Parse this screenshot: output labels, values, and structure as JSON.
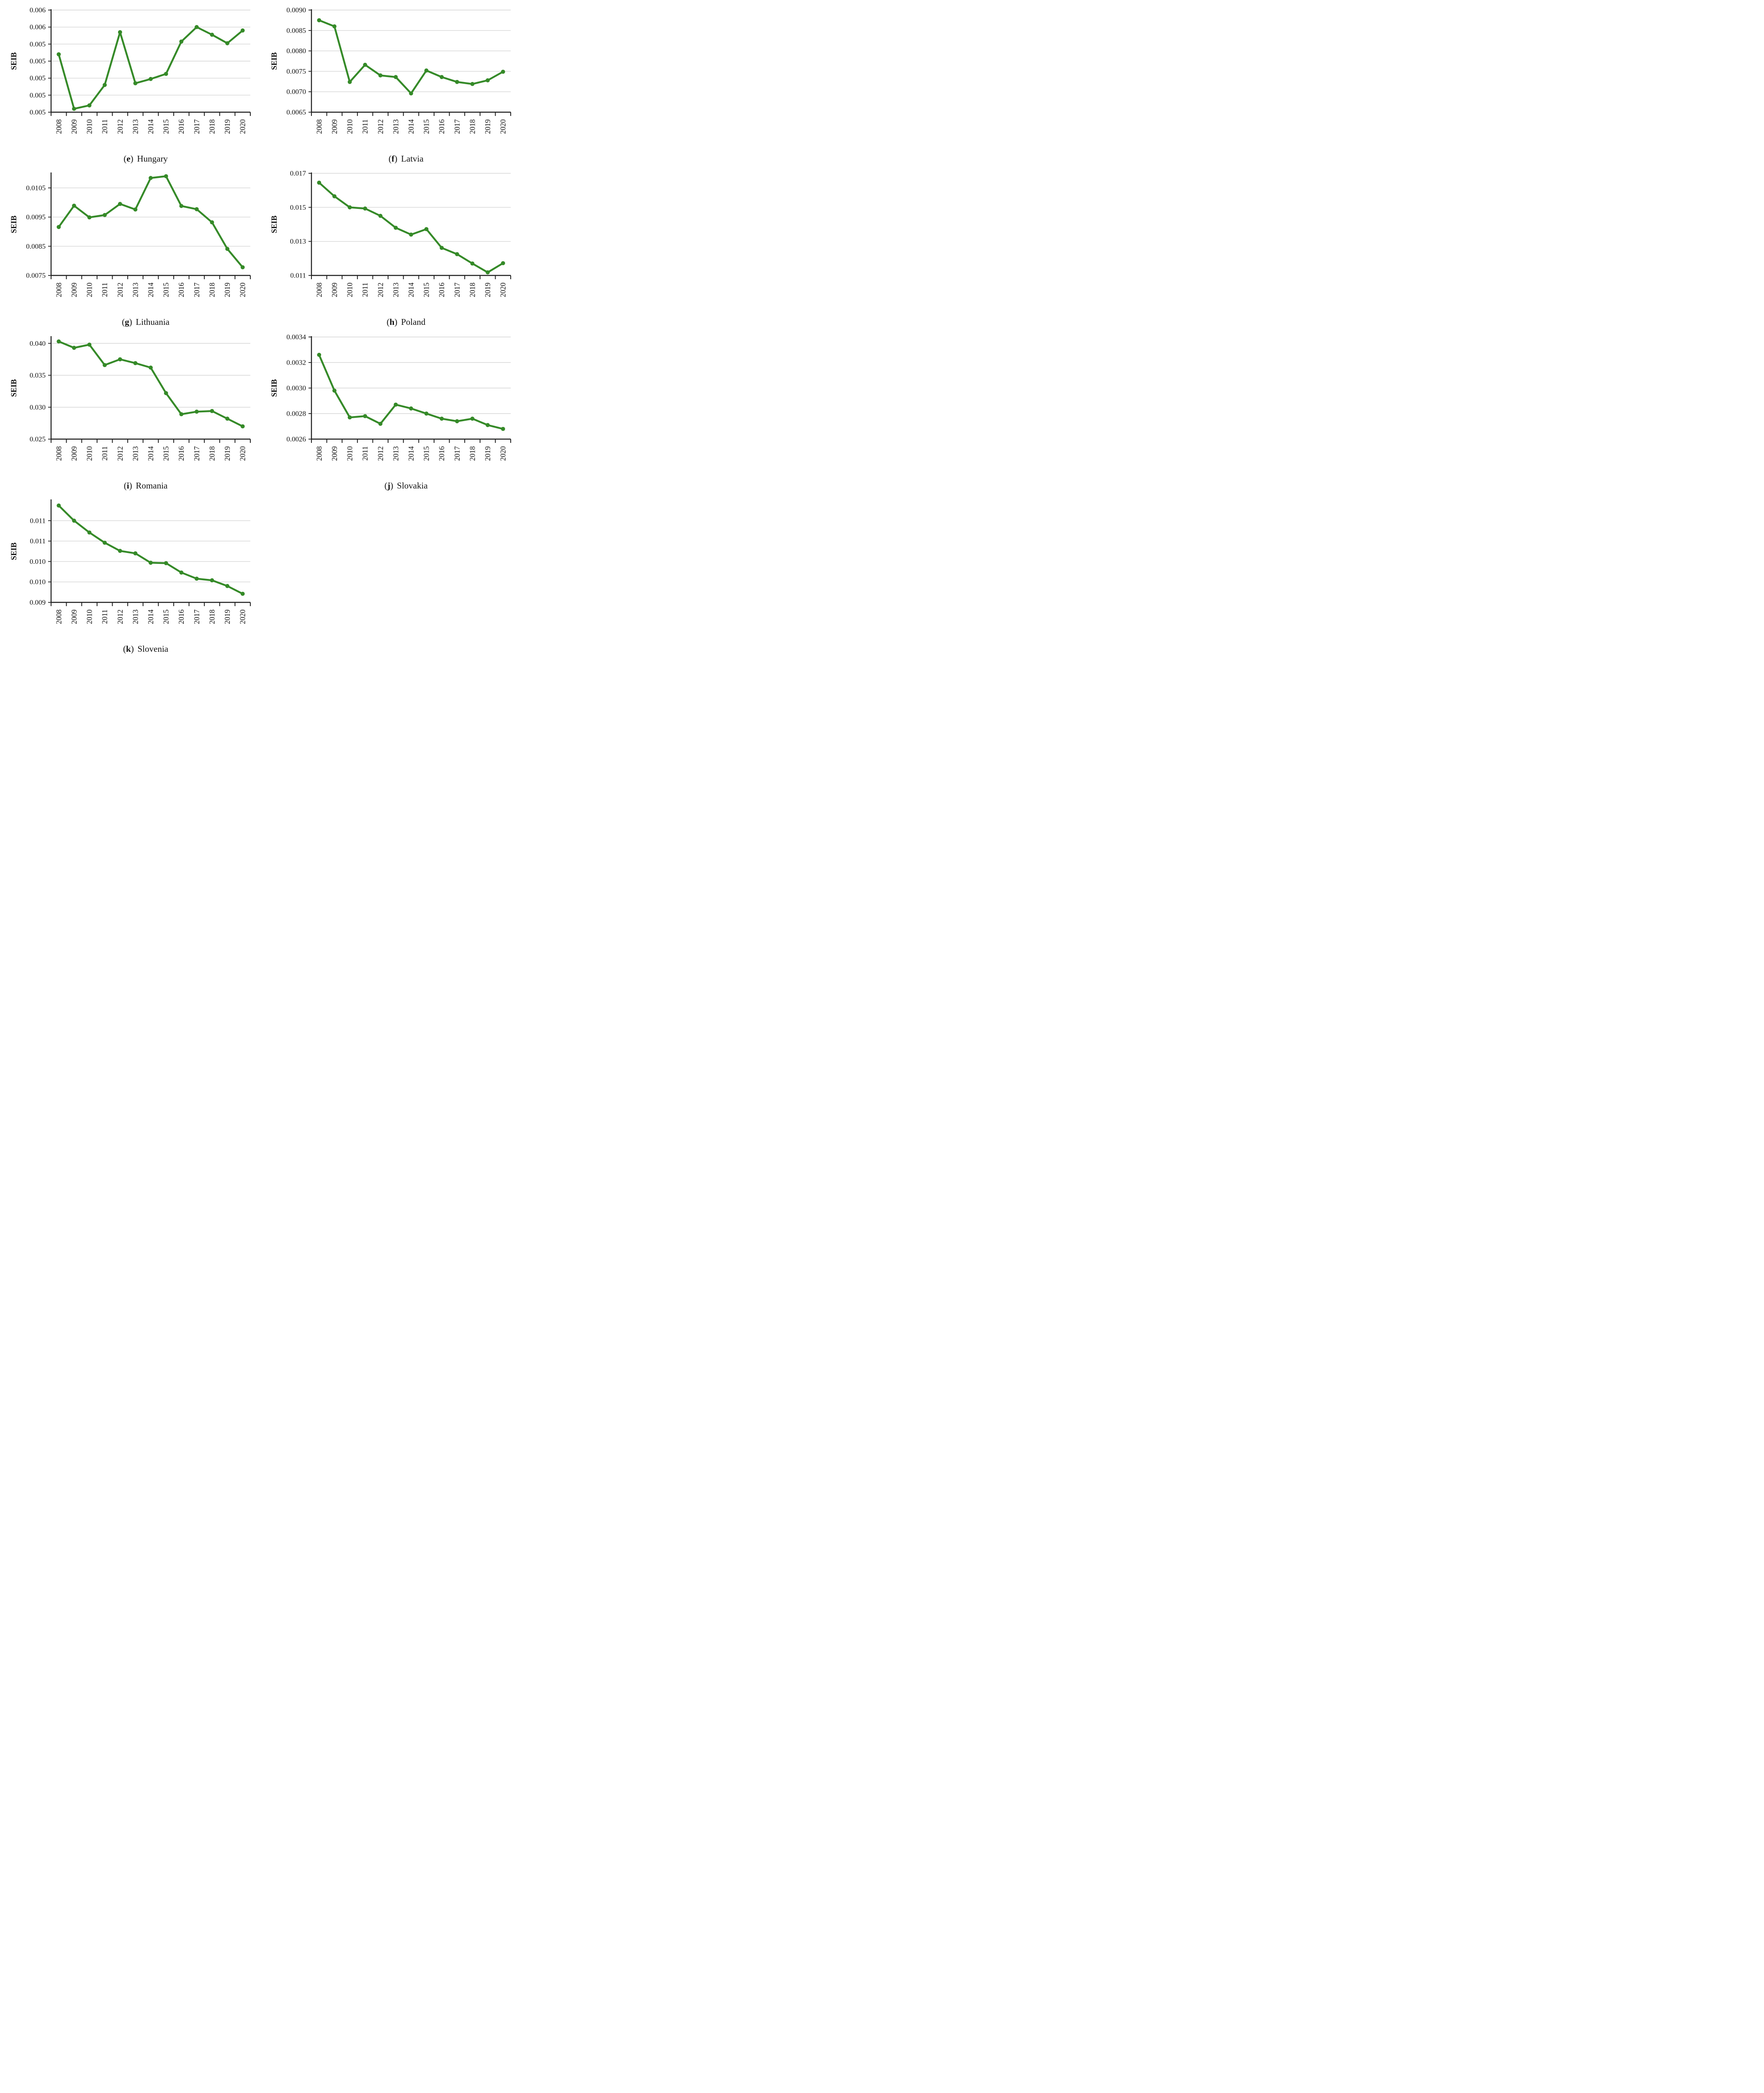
{
  "figure": {
    "caption_open": "(",
    "caption_close": ")",
    "ylabel": "SEIB"
  },
  "styles": {
    "line_color": "#358a28",
    "grid_color": "#d6d6d6",
    "axis_color": "#1f1f1f",
    "text_color": "#111111",
    "background": "#ffffff"
  },
  "years": [
    2008,
    2009,
    2010,
    2011,
    2012,
    2013,
    2014,
    2015,
    2016,
    2017,
    2018,
    2019,
    2020
  ],
  "chart_data": [
    {
      "type": "line",
      "panel_letter": "e",
      "country": "Hungary",
      "ylabel": "SEIB",
      "grid": "horizontal",
      "legend": "none",
      "ylim": [
        0.0046,
        0.0058
      ],
      "yticks": [
        {
          "value": 0.0058,
          "label": "0.006"
        },
        {
          "value": 0.0056,
          "label": "0.006"
        },
        {
          "value": 0.0054,
          "label": "0.005"
        },
        {
          "value": 0.0052,
          "label": "0.005"
        },
        {
          "value": 0.005,
          "label": "0.005"
        },
        {
          "value": 0.0048,
          "label": "0.005"
        },
        {
          "value": 0.0046,
          "label": "0.005"
        }
      ],
      "values": [
        0.00528,
        0.00464,
        0.00468,
        0.00492,
        0.00554,
        0.00494,
        0.00499,
        0.00505,
        0.00543,
        0.0056,
        0.00551,
        0.00541,
        0.00556
      ]
    },
    {
      "type": "line",
      "panel_letter": "f",
      "country": "Latvia",
      "ylabel": "SEIB",
      "grid": "horizontal",
      "legend": "none",
      "ylim": [
        0.0065,
        0.009
      ],
      "yticks": [
        {
          "value": 0.009,
          "label": "0.0090"
        },
        {
          "value": 0.0085,
          "label": "0.0085"
        },
        {
          "value": 0.008,
          "label": "0.0080"
        },
        {
          "value": 0.0075,
          "label": "0.0075"
        },
        {
          "value": 0.007,
          "label": "0.0070"
        },
        {
          "value": 0.0065,
          "label": "0.0065"
        }
      ],
      "values": [
        0.00875,
        0.0086,
        0.00724,
        0.00766,
        0.0074,
        0.00736,
        0.00696,
        0.00752,
        0.00736,
        0.00724,
        0.00719,
        0.00728,
        0.00749
      ]
    },
    {
      "type": "line",
      "panel_letter": "g",
      "country": "Lithuania",
      "ylabel": "SEIB",
      "grid": "horizontal",
      "legend": "none",
      "ylim": [
        0.0075,
        0.011
      ],
      "yticks": [
        {
          "value": 0.0105,
          "label": "0.0105"
        },
        {
          "value": 0.0095,
          "label": "0.0095"
        },
        {
          "value": 0.0085,
          "label": "0.0085"
        },
        {
          "value": 0.0075,
          "label": "0.0075"
        }
      ],
      "values": [
        0.00916,
        0.00989,
        0.00949,
        0.00957,
        0.00995,
        0.00976,
        0.01084,
        0.0109,
        0.00988,
        0.00977,
        0.00932,
        0.00841,
        0.00778
      ]
    },
    {
      "type": "line",
      "panel_letter": "h",
      "country": "Poland",
      "ylabel": "SEIB",
      "grid": "horizontal",
      "legend": "none",
      "ylim": [
        0.011,
        0.017
      ],
      "yticks": [
        {
          "value": 0.017,
          "label": "0.017"
        },
        {
          "value": 0.015,
          "label": "0.015"
        },
        {
          "value": 0.013,
          "label": "0.013"
        },
        {
          "value": 0.011,
          "label": "0.011"
        }
      ],
      "values": [
        0.01645,
        0.01565,
        0.015,
        0.01493,
        0.0145,
        0.0138,
        0.0134,
        0.01372,
        0.01262,
        0.01225,
        0.0117,
        0.01118,
        0.01172
      ]
    },
    {
      "type": "line",
      "panel_letter": "i",
      "country": "Romania",
      "ylabel": "SEIB",
      "grid": "horizontal",
      "legend": "none",
      "ylim": [
        0.025,
        0.041
      ],
      "yticks": [
        {
          "value": 0.04,
          "label": "0.040"
        },
        {
          "value": 0.035,
          "label": "0.035"
        },
        {
          "value": 0.03,
          "label": "0.030"
        },
        {
          "value": 0.025,
          "label": "0.025"
        }
      ],
      "values": [
        0.0403,
        0.0393,
        0.0398,
        0.0366,
        0.0375,
        0.0369,
        0.0362,
        0.0322,
        0.0289,
        0.0293,
        0.0294,
        0.0282,
        0.027
      ]
    },
    {
      "type": "line",
      "panel_letter": "j",
      "country": "Slovakia",
      "ylabel": "SEIB",
      "grid": "horizontal",
      "legend": "none",
      "ylim": [
        0.0026,
        0.0034
      ],
      "yticks": [
        {
          "value": 0.0034,
          "label": "0.0034"
        },
        {
          "value": 0.0032,
          "label": "0.0032"
        },
        {
          "value": 0.003,
          "label": "0.0030"
        },
        {
          "value": 0.0028,
          "label": "0.0028"
        },
        {
          "value": 0.0026,
          "label": "0.0026"
        }
      ],
      "values": [
        0.00326,
        0.00298,
        0.00277,
        0.00278,
        0.00272,
        0.00287,
        0.00284,
        0.0028,
        0.00276,
        0.00274,
        0.00276,
        0.00271,
        0.00268
      ]
    },
    {
      "type": "line",
      "panel_letter": "k",
      "country": "Slovenia",
      "ylabel": "SEIB",
      "grid": "horizontal",
      "legend": "none",
      "ylim": [
        0.009,
        0.0115
      ],
      "yticks": [
        {
          "value": 0.011,
          "label": "0.011"
        },
        {
          "value": 0.0105,
          "label": "0.011"
        },
        {
          "value": 0.01,
          "label": "0.010"
        },
        {
          "value": 0.0095,
          "label": "0.010"
        },
        {
          "value": 0.009,
          "label": "0.009"
        }
      ],
      "values": [
        0.01137,
        0.011,
        0.01071,
        0.01046,
        0.01026,
        0.0102,
        0.00997,
        0.00996,
        0.00973,
        0.00958,
        0.00954,
        0.0094,
        0.00921
      ]
    }
  ]
}
